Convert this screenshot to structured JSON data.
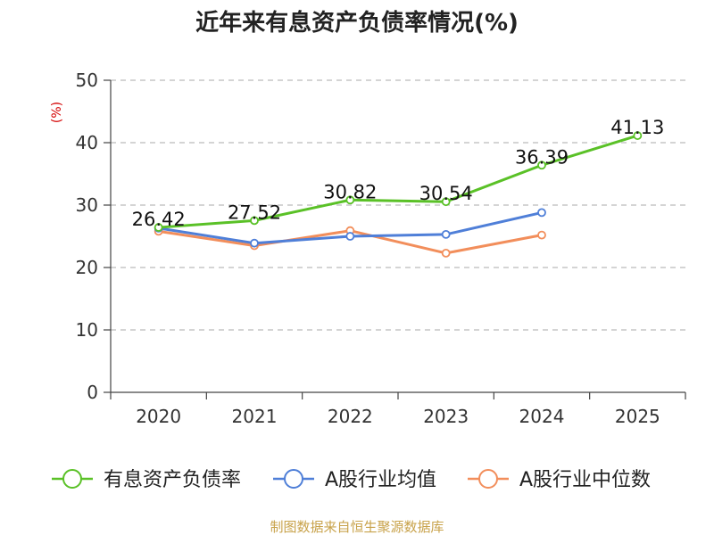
{
  "chart_data": {
    "type": "line",
    "title": "近年来有息资产负债率情况(%)",
    "ylabel": "(%)",
    "xlabel": "",
    "categories": [
      "2020",
      "2021",
      "2022",
      "2023",
      "2024",
      "2025"
    ],
    "ylim": [
      0,
      50
    ],
    "yticks": [
      0,
      10,
      20,
      30,
      40,
      50
    ],
    "grid": true,
    "legend_position": "bottom",
    "series": [
      {
        "name": "有息资产负债率",
        "color": "#5ac127",
        "values": [
          26.42,
          27.52,
          30.82,
          30.54,
          36.39,
          41.13
        ],
        "labels": [
          "26.42",
          "27.52",
          "30.82",
          "30.54",
          "36.39",
          "41.13"
        ]
      },
      {
        "name": "A股行业均值",
        "color": "#4f7fd8",
        "values": [
          26.3,
          23.9,
          25.0,
          25.3,
          28.8,
          null
        ]
      },
      {
        "name": "A股行业中位数",
        "color": "#f28e5b",
        "values": [
          25.8,
          23.5,
          25.9,
          22.3,
          25.2,
          null
        ]
      }
    ],
    "source": "制图数据来自恒生聚源数据库"
  }
}
